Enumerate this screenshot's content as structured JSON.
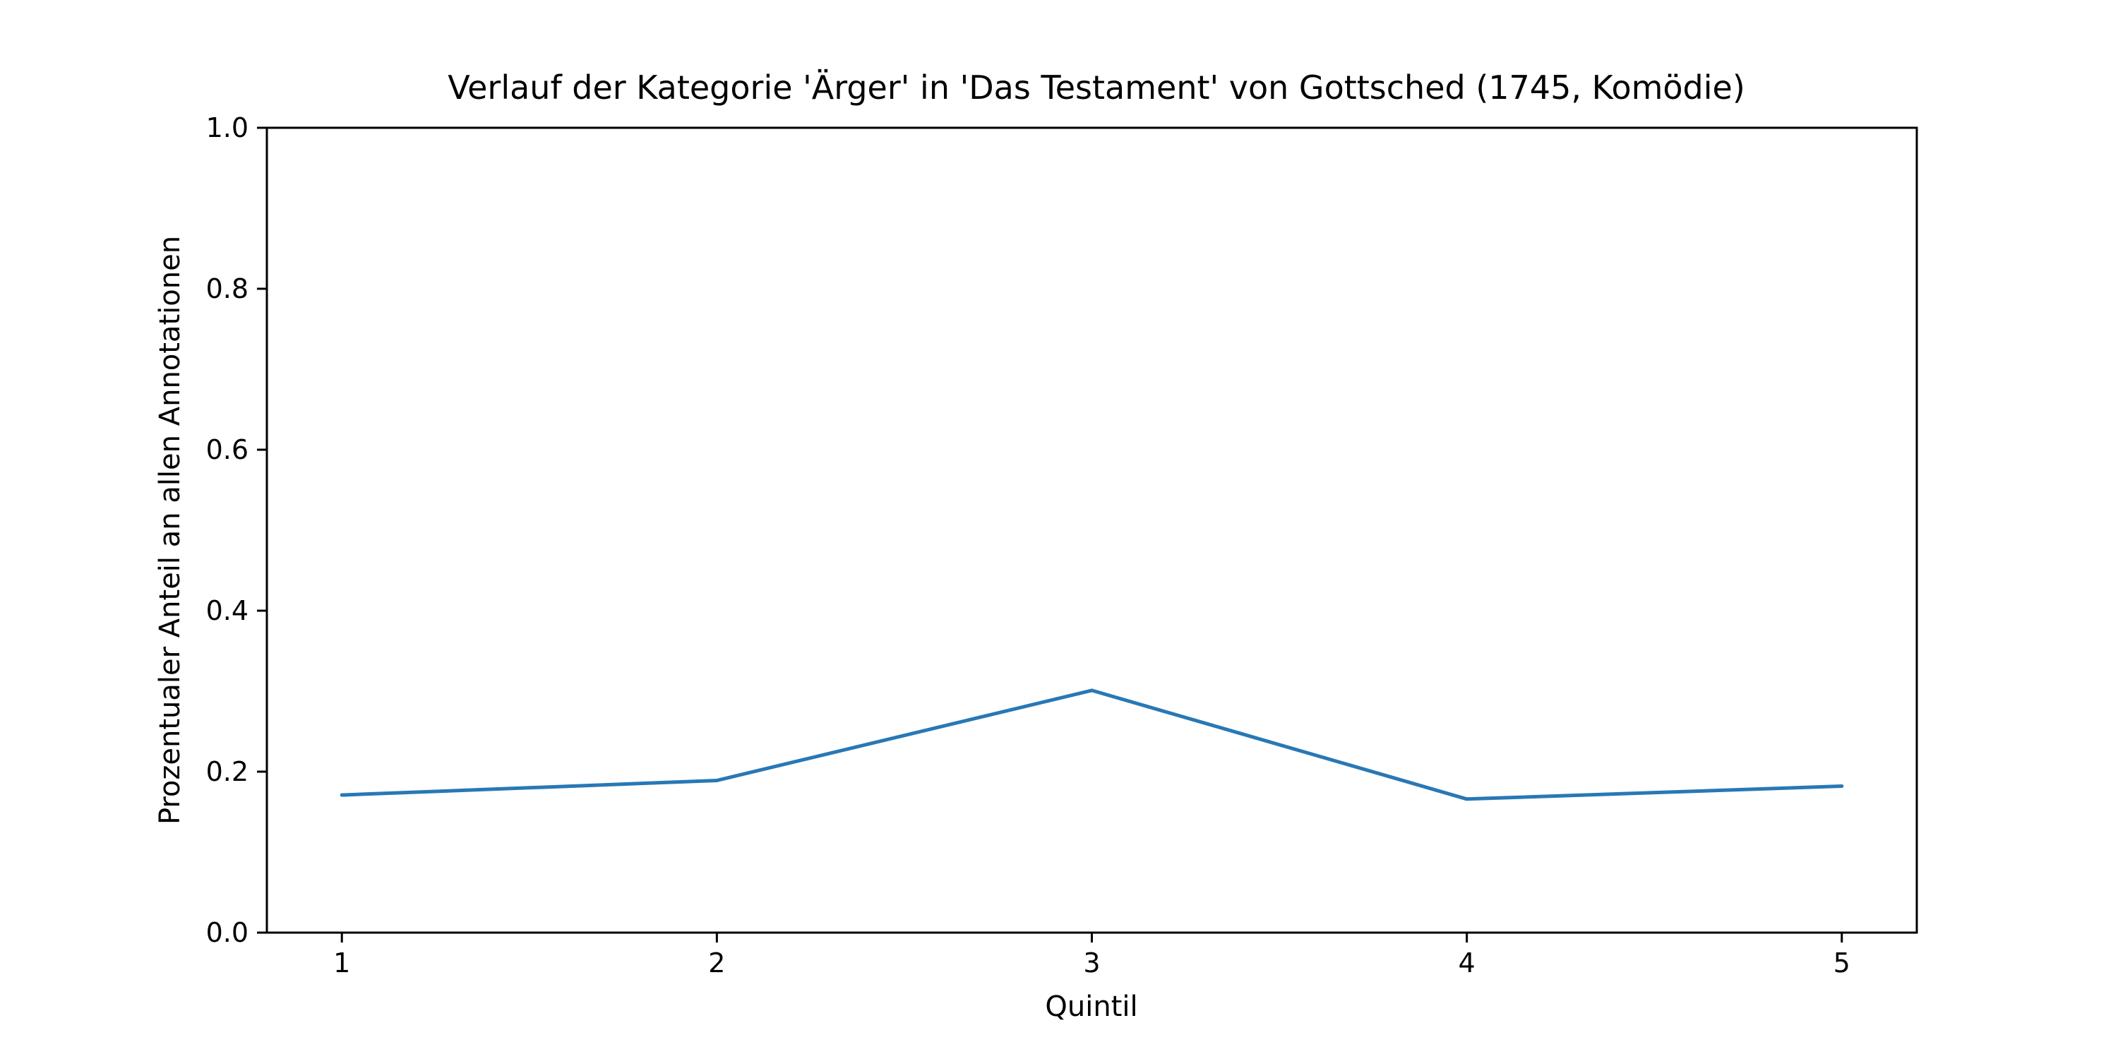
{
  "chart_data": {
    "type": "line",
    "title": "Verlauf der Kategorie 'Ärger' in 'Das Testament' von Gottsched (1745, Komödie)",
    "xlabel": "Quintil",
    "ylabel": "Prozentualer Anteil an allen Annotationen",
    "x": [
      1,
      2,
      3,
      4,
      5
    ],
    "x_tick_labels": [
      "1",
      "2",
      "3",
      "4",
      "5"
    ],
    "xlim": [
      0.8,
      5.2
    ],
    "ylim": [
      0.0,
      1.0
    ],
    "y_ticks": [
      0.0,
      0.2,
      0.4,
      0.6,
      0.8,
      1.0
    ],
    "y_tick_labels": [
      "0.0",
      "0.2",
      "0.4",
      "0.6",
      "0.8",
      "1.0"
    ],
    "grid": false,
    "series": [
      {
        "values": [
          0.171,
          0.189,
          0.301,
          0.166,
          0.182
        ],
        "color": "#2878b5"
      }
    ]
  }
}
